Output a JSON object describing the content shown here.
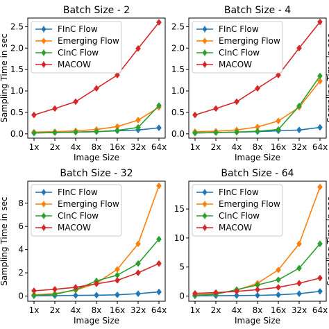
{
  "chart_data": [
    {
      "type": "line",
      "title": "Batch Size - 2",
      "xlabel": "Image Size",
      "ylabel": "Sampling Time in sec",
      "ylabel_side": "left",
      "categories": [
        "1x",
        "2x",
        "4x",
        "8x",
        "16x",
        "32x",
        "64x"
      ],
      "ylim": [
        -0.1,
        2.7
      ],
      "yticks": [
        0.0,
        0.5,
        1.0,
        1.5,
        2.0,
        2.5
      ],
      "ytick_labels": [
        "0.0",
        "0.5",
        "1.0",
        "1.5",
        "2.0",
        "2.5"
      ],
      "legend": "upper-left",
      "series": [
        {
          "name": "FInC Flow",
          "color": "#1f77b4",
          "values": [
            0.02,
            0.03,
            0.04,
            0.05,
            0.07,
            0.09,
            0.14
          ]
        },
        {
          "name": "Emerging Flow",
          "color": "#ff7f0e",
          "values": [
            0.04,
            0.05,
            0.07,
            0.1,
            0.17,
            0.32,
            0.62
          ]
        },
        {
          "name": "CInC Flow",
          "color": "#2ca02c",
          "values": [
            0.02,
            0.03,
            0.04,
            0.05,
            0.08,
            0.15,
            0.66
          ]
        },
        {
          "name": "MACOW",
          "color": "#d62728",
          "values": [
            0.44,
            0.59,
            0.75,
            1.06,
            1.37,
            1.99,
            2.6
          ]
        }
      ]
    },
    {
      "type": "line",
      "title": "Batch Size - 4",
      "xlabel": "Image Size",
      "ylabel": "Sampling Time in sec",
      "ylabel_side": "right",
      "categories": [
        "1x",
        "2x",
        "4x",
        "8x",
        "16x",
        "32x",
        "64x"
      ],
      "ylim": [
        -0.1,
        2.7
      ],
      "yticks": [
        0.0,
        0.5,
        1.0,
        1.5,
        2.0,
        2.5
      ],
      "ytick_labels": [
        "0.0",
        "0.5",
        "1.0",
        "1.5",
        "2.0",
        "2.5"
      ],
      "legend": "upper-left",
      "series": [
        {
          "name": "FInC Flow",
          "color": "#1f77b4",
          "values": [
            0.02,
            0.03,
            0.04,
            0.05,
            0.07,
            0.09,
            0.15
          ]
        },
        {
          "name": "Emerging Flow",
          "color": "#ff7f0e",
          "values": [
            0.05,
            0.06,
            0.09,
            0.16,
            0.3,
            0.62,
            1.23
          ]
        },
        {
          "name": "CInC Flow",
          "color": "#2ca02c",
          "values": [
            0.02,
            0.03,
            0.04,
            0.06,
            0.1,
            0.65,
            1.35
          ]
        },
        {
          "name": "MACOW",
          "color": "#d62728",
          "values": [
            0.44,
            0.59,
            0.75,
            1.06,
            1.37,
            2.0,
            2.61
          ]
        }
      ]
    },
    {
      "type": "line",
      "title": "Batch Size - 32",
      "xlabel": "Image Size",
      "ylabel": "Sampling Time in sec",
      "ylabel_side": "left",
      "categories": [
        "1x",
        "2x",
        "4x",
        "8x",
        "16x",
        "32x",
        "64x"
      ],
      "ylim": [
        -0.45,
        9.9
      ],
      "yticks": [
        0,
        2,
        4,
        6,
        8
      ],
      "ytick_labels": [
        "0",
        "2",
        "4",
        "6",
        "8"
      ],
      "legend": "upper-left",
      "series": [
        {
          "name": "FInC Flow",
          "color": "#1f77b4",
          "values": [
            0.02,
            0.03,
            0.05,
            0.07,
            0.1,
            0.2,
            0.35
          ]
        },
        {
          "name": "Emerging Flow",
          "color": "#ff7f0e",
          "values": [
            0.1,
            0.2,
            0.5,
            1.1,
            2.3,
            4.5,
            9.5
          ]
        },
        {
          "name": "CInC Flow",
          "color": "#2ca02c",
          "values": [
            0.05,
            0.15,
            0.55,
            1.3,
            1.8,
            2.8,
            4.9
          ]
        },
        {
          "name": "MACOW",
          "color": "#d62728",
          "values": [
            0.45,
            0.58,
            0.75,
            1.05,
            1.35,
            2.0,
            2.8
          ]
        }
      ]
    },
    {
      "type": "line",
      "title": "Batch Size - 64",
      "xlabel": "Image Size",
      "ylabel": "Sampling Time in sec",
      "ylabel_side": "right",
      "categories": [
        "1x",
        "2x",
        "4x",
        "8x",
        "16x",
        "32x",
        "64x"
      ],
      "ylim": [
        -0.9,
        19.8
      ],
      "yticks": [
        0,
        5,
        10,
        15
      ],
      "ytick_labels": [
        "0",
        "5",
        "10",
        "15"
      ],
      "legend": "upper-left",
      "series": [
        {
          "name": "FInC Flow",
          "color": "#1f77b4",
          "values": [
            0.03,
            0.05,
            0.08,
            0.12,
            0.2,
            0.4,
            0.8
          ]
        },
        {
          "name": "Emerging Flow",
          "color": "#ff7f0e",
          "values": [
            0.2,
            0.4,
            1.0,
            2.2,
            4.5,
            9.0,
            18.8
          ]
        },
        {
          "name": "CInC Flow",
          "color": "#2ca02c",
          "values": [
            0.1,
            0.3,
            1.1,
            1.9,
            2.8,
            4.8,
            9.0
          ]
        },
        {
          "name": "MACOW",
          "color": "#d62728",
          "values": [
            0.45,
            0.6,
            0.8,
            1.1,
            1.5,
            2.2,
            3.1
          ]
        }
      ]
    }
  ]
}
